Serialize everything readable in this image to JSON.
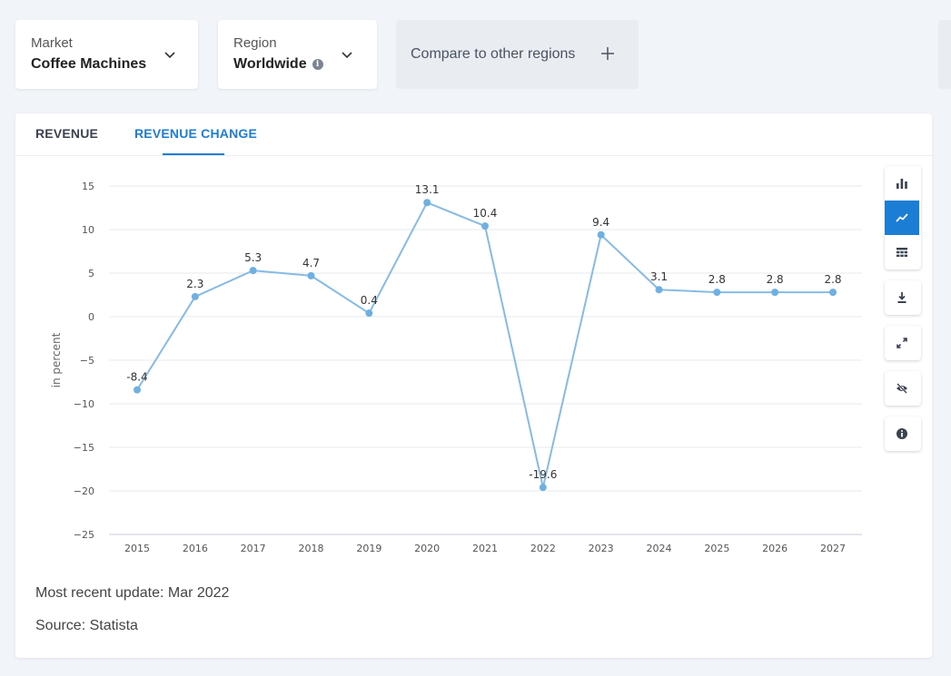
{
  "filters": {
    "market": {
      "label": "Market",
      "value": "Coffee Machines"
    },
    "region": {
      "label": "Region",
      "value": "Worldwide"
    },
    "compare": {
      "label": "Compare to other regions"
    }
  },
  "tabs": [
    {
      "label": "REVENUE",
      "active": false
    },
    {
      "label": "REVENUE CHANGE",
      "active": true
    }
  ],
  "toolbar": {
    "buttons": [
      "bar-chart-icon",
      "line-chart-icon",
      "table-icon",
      "download-icon",
      "expand-icon",
      "hide-icon",
      "info-icon"
    ],
    "active": "line-chart-icon"
  },
  "colors": {
    "accent": "#1b7ed4",
    "line": "#86bbe5",
    "point": "#6fb0e2"
  },
  "chart_data": {
    "type": "line",
    "title": "",
    "xlabel": "",
    "ylabel": "in percent",
    "x": [
      "2015",
      "2016",
      "2017",
      "2018",
      "2019",
      "2020",
      "2021",
      "2022",
      "2023",
      "2024",
      "2025",
      "2026",
      "2027"
    ],
    "values": [
      -8.4,
      2.3,
      5.3,
      4.7,
      0.4,
      13.1,
      10.4,
      -19.6,
      9.4,
      3.1,
      2.8,
      2.8,
      2.8
    ],
    "labels": [
      "-8.4",
      "2.3",
      "5.3",
      "4.7",
      "0.4",
      "13.1",
      "10.4",
      "-19.6",
      "9.4",
      "3.1",
      "2.8",
      "2.8",
      "2.8"
    ],
    "yticks": [
      15,
      10,
      5,
      0,
      -5,
      -10,
      -15,
      -20,
      -25
    ],
    "yticklabels": [
      "15",
      "10",
      "5",
      "0",
      "−5",
      "−10",
      "−15",
      "−20",
      "−25"
    ],
    "ylim": [
      -25,
      15
    ],
    "grid": true
  },
  "footer": {
    "update": "Most recent update: Mar 2022",
    "source": "Source: Statista"
  }
}
